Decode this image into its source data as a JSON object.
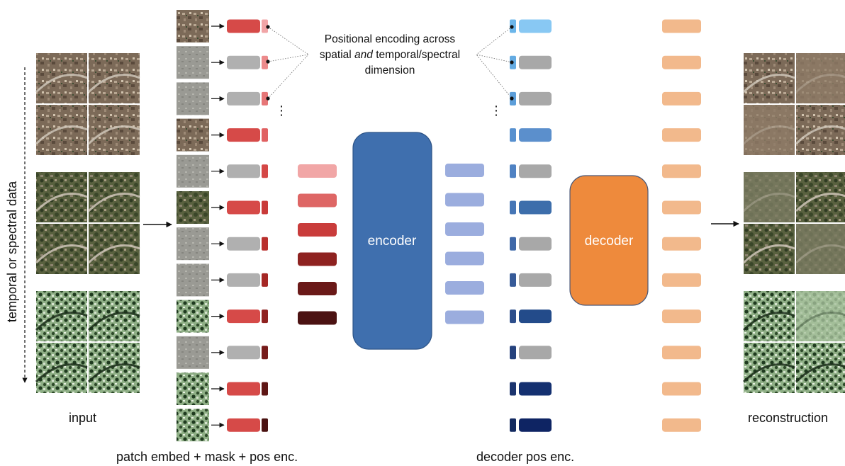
{
  "labels": {
    "input": "input",
    "reconstruction": "reconstruction",
    "patch_embed": "patch embed + mask + pos enc.",
    "decoder_pos": "decoder pos enc.",
    "axis_vertical": "temporal or spectral data",
    "annotation_line1": "Positional encoding across",
    "annotation_pre": "spatial ",
    "annotation_em": "and",
    "annotation_post": " temporal/spectral",
    "annotation_line3": "dimension",
    "encoder": "encoder",
    "decoder": "decoder",
    "ellipsis": "⋮"
  },
  "colors": {
    "encoder": "#3f6fae",
    "decoder": "#ee8a3c",
    "masked": "#b0b0b0",
    "visible": "#d64a48",
    "latent": "#9badde",
    "recon": "#f2b98c"
  },
  "patch_rows": [
    {
      "visible": true,
      "pos_color": "#f1a5a7"
    },
    {
      "visible": false,
      "pos_color": "#ec8a8b"
    },
    {
      "visible": false,
      "pos_color": "#e67677"
    },
    {
      "visible": true,
      "pos_color": "#e06162"
    },
    {
      "visible": false,
      "pos_color": "#d44746"
    },
    {
      "visible": true,
      "pos_color": "#c93a39"
    },
    {
      "visible": false,
      "pos_color": "#b92f2d"
    },
    {
      "visible": false,
      "pos_color": "#a52725"
    },
    {
      "visible": true,
      "pos_color": "#8f2220"
    },
    {
      "visible": false,
      "pos_color": "#761b1a"
    },
    {
      "visible": true,
      "pos_color": "#5e1615"
    },
    {
      "visible": true,
      "pos_color": "#4a1211"
    }
  ],
  "visible_tokens": [
    "#f1a6a6",
    "#de6665",
    "#c93c3b",
    "#8e2220",
    "#6a1918",
    "#4b1212"
  ],
  "latent_tokens": 6,
  "decoder_rows": [
    {
      "masked": false,
      "color": "#88c8f3",
      "pos_color": "#6bb6ea"
    },
    {
      "masked": true,
      "color": "#a8a8a8",
      "pos_color": "#64abe2"
    },
    {
      "masked": true,
      "color": "#a8a8a8",
      "pos_color": "#5c9ed9"
    },
    {
      "masked": false,
      "color": "#5b8fcc",
      "pos_color": "#5790cf"
    },
    {
      "masked": true,
      "color": "#a8a8a8",
      "pos_color": "#4f82c3"
    },
    {
      "masked": false,
      "color": "#3d6eab",
      "pos_color": "#4676b6"
    },
    {
      "masked": true,
      "color": "#a8a8a8",
      "pos_color": "#3f68a8"
    },
    {
      "masked": true,
      "color": "#a8a8a8",
      "pos_color": "#365a98"
    },
    {
      "masked": false,
      "color": "#234b8a",
      "pos_color": "#2d4e8b"
    },
    {
      "masked": true,
      "color": "#a8a8a8",
      "pos_color": "#25427d"
    },
    {
      "masked": false,
      "color": "#143070",
      "pos_color": "#1b346e"
    },
    {
      "masked": false,
      "color": "#0e2463",
      "pos_color": "#132a60"
    }
  ],
  "recon_tokens": 12,
  "input_groups": [
    {
      "type": "urban"
    },
    {
      "type": "green"
    },
    {
      "type": "infrared"
    }
  ]
}
